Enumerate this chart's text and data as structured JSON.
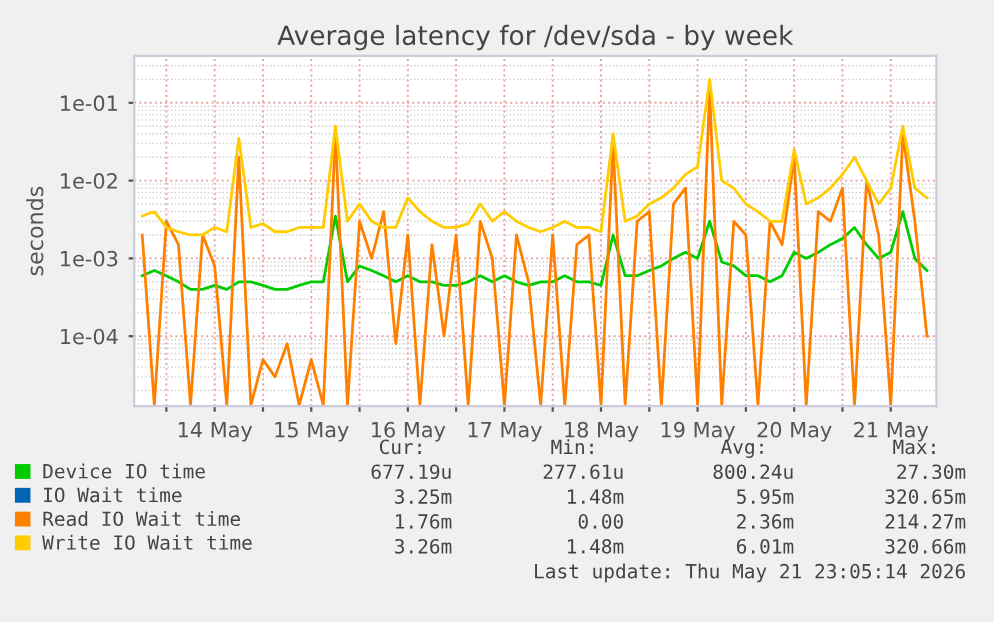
{
  "chart_data": {
    "type": "line",
    "title": "Average latency for /dev/sda - by week",
    "ylabel": "seconds",
    "log": "y",
    "grid": true,
    "legend": "bottom",
    "marker": "none",
    "line_style": "solid",
    "ylim": [
      1.26e-05,
      0.4
    ],
    "yticks": [
      {
        "value": 0.0001,
        "label": "1e-04"
      },
      {
        "value": 0.001,
        "label": "1e-03"
      },
      {
        "value": 0.01,
        "label": "1e-02"
      },
      {
        "value": 0.1,
        "label": "1e-01"
      }
    ],
    "xlim": [
      "2026-05-13T16:00",
      "2026-05-21T23:20"
    ],
    "xticks": [
      {
        "value": "2026-05-14",
        "label": null
      },
      {
        "value": "2026-05-14T12:00",
        "label": "14 May"
      },
      {
        "value": "2026-05-15",
        "label": null
      },
      {
        "value": "2026-05-15T12:00",
        "label": "15 May"
      },
      {
        "value": "2026-05-16",
        "label": null
      },
      {
        "value": "2026-05-16T12:00",
        "label": "16 May"
      },
      {
        "value": "2026-05-17",
        "label": null
      },
      {
        "value": "2026-05-17T12:00",
        "label": "17 May"
      },
      {
        "value": "2026-05-18",
        "label": null
      },
      {
        "value": "2026-05-18T12:00",
        "label": "18 May"
      },
      {
        "value": "2026-05-19",
        "label": null
      },
      {
        "value": "2026-05-19T12:00",
        "label": "19 May"
      },
      {
        "value": "2026-05-20",
        "label": null
      },
      {
        "value": "2026-05-20T12:00",
        "label": "20 May"
      },
      {
        "value": "2026-05-21",
        "label": null
      },
      {
        "value": "2026-05-21T12:00",
        "label": "21 May"
      }
    ],
    "x": [
      "2026-05-13T18:00",
      "2026-05-13T21:00",
      "2026-05-14T00:00",
      "2026-05-14T03:00",
      "2026-05-14T06:00",
      "2026-05-14T09:00",
      "2026-05-14T12:00",
      "2026-05-14T15:00",
      "2026-05-14T18:00",
      "2026-05-14T21:00",
      "2026-05-15T00:00",
      "2026-05-15T03:00",
      "2026-05-15T06:00",
      "2026-05-15T09:00",
      "2026-05-15T12:00",
      "2026-05-15T15:00",
      "2026-05-15T18:00",
      "2026-05-15T21:00",
      "2026-05-16T00:00",
      "2026-05-16T03:00",
      "2026-05-16T06:00",
      "2026-05-16T09:00",
      "2026-05-16T12:00",
      "2026-05-16T15:00",
      "2026-05-16T18:00",
      "2026-05-16T21:00",
      "2026-05-17T00:00",
      "2026-05-17T03:00",
      "2026-05-17T06:00",
      "2026-05-17T09:00",
      "2026-05-17T12:00",
      "2026-05-17T15:00",
      "2026-05-17T18:00",
      "2026-05-17T21:00",
      "2026-05-18T00:00",
      "2026-05-18T03:00",
      "2026-05-18T06:00",
      "2026-05-18T09:00",
      "2026-05-18T12:00",
      "2026-05-18T15:00",
      "2026-05-18T18:00",
      "2026-05-18T21:00",
      "2026-05-19T00:00",
      "2026-05-19T03:00",
      "2026-05-19T06:00",
      "2026-05-19T09:00",
      "2026-05-19T12:00",
      "2026-05-19T15:00",
      "2026-05-19T18:00",
      "2026-05-19T21:00",
      "2026-05-20T00:00",
      "2026-05-20T03:00",
      "2026-05-20T06:00",
      "2026-05-20T09:00",
      "2026-05-20T12:00",
      "2026-05-20T15:00",
      "2026-05-20T18:00",
      "2026-05-20T21:00",
      "2026-05-21T00:00",
      "2026-05-21T03:00",
      "2026-05-21T06:00",
      "2026-05-21T09:00",
      "2026-05-21T12:00",
      "2026-05-21T15:00",
      "2026-05-21T18:00",
      "2026-05-21T21:00"
    ],
    "series": [
      {
        "name": "Device IO time",
        "color": "#00cc00",
        "values": [
          0.0006,
          0.0007,
          0.0006,
          0.0005,
          0.0004,
          0.0004,
          0.00045,
          0.0004,
          0.0005,
          0.0005,
          0.00045,
          0.0004,
          0.0004,
          0.00045,
          0.0005,
          0.0005,
          0.0035,
          0.0005,
          0.0008,
          0.0007,
          0.0006,
          0.0005,
          0.0006,
          0.0005,
          0.0005,
          0.00045,
          0.00045,
          0.0005,
          0.0006,
          0.0005,
          0.0006,
          0.0005,
          0.00045,
          0.0005,
          0.0005,
          0.0006,
          0.0005,
          0.0005,
          0.00045,
          0.002,
          0.0006,
          0.0006,
          0.0007,
          0.0008,
          0.001,
          0.0012,
          0.001,
          0.003,
          0.0009,
          0.0008,
          0.0006,
          0.0006,
          0.0005,
          0.0006,
          0.0012,
          0.001,
          0.0012,
          0.0015,
          0.0018,
          0.0025,
          0.0015,
          0.001,
          0.0012,
          0.004,
          0.001,
          0.0007
        ]
      },
      {
        "name": "IO Wait time",
        "color": "#0066b3",
        "values": [
          null,
          null,
          null,
          null,
          null,
          null,
          null,
          null,
          null,
          null,
          null,
          null,
          null,
          null,
          null,
          null,
          null,
          null,
          null,
          null,
          null,
          null,
          null,
          null,
          null,
          null,
          null,
          null,
          null,
          null,
          null,
          null,
          null,
          null,
          null,
          null,
          null,
          null,
          null,
          null,
          null,
          null,
          null,
          null,
          null,
          null,
          null,
          null,
          null,
          null,
          null,
          null,
          null,
          null,
          null,
          null,
          null,
          null,
          null,
          null,
          null,
          null,
          null,
          null,
          null,
          null
        ]
      },
      {
        "name": "Read IO Wait time",
        "color": "#ff8000",
        "values": [
          0.002,
          1.3e-05,
          0.003,
          0.0015,
          1.3e-05,
          0.002,
          0.0008,
          1.3e-05,
          0.02,
          1.3e-05,
          5e-05,
          3e-05,
          8e-05,
          1.3e-05,
          5e-05,
          1.3e-05,
          0.04,
          1.3e-05,
          0.003,
          0.001,
          0.004,
          8e-05,
          0.002,
          1.3e-05,
          0.0015,
          0.0001,
          0.002,
          1.3e-05,
          0.003,
          0.001,
          1.3e-05,
          0.002,
          0.0005,
          1.3e-05,
          0.002,
          1.3e-05,
          0.0015,
          0.002,
          1.3e-05,
          0.03,
          1.3e-05,
          0.003,
          0.004,
          1.3e-05,
          0.005,
          0.008,
          1.3e-05,
          0.15,
          1.3e-05,
          0.003,
          0.002,
          1.3e-05,
          0.003,
          0.0015,
          0.02,
          1.3e-05,
          0.004,
          0.003,
          0.008,
          1.3e-05,
          0.01,
          0.002,
          1.3e-05,
          0.04,
          0.003,
          0.0001
        ]
      },
      {
        "name": "Write IO Wait time",
        "color": "#ffcc00",
        "values": [
          0.0035,
          0.004,
          0.0025,
          0.0022,
          0.002,
          0.002,
          0.0025,
          0.0022,
          0.035,
          0.0025,
          0.0028,
          0.0022,
          0.0022,
          0.0025,
          0.0025,
          0.0025,
          0.05,
          0.003,
          0.005,
          0.003,
          0.0025,
          0.0025,
          0.006,
          0.004,
          0.003,
          0.0025,
          0.0025,
          0.0028,
          0.005,
          0.003,
          0.004,
          0.003,
          0.0025,
          0.0022,
          0.0025,
          0.003,
          0.0025,
          0.0025,
          0.0022,
          0.04,
          0.003,
          0.0035,
          0.005,
          0.006,
          0.008,
          0.012,
          0.015,
          0.2,
          0.01,
          0.008,
          0.005,
          0.004,
          0.003,
          0.003,
          0.025,
          0.005,
          0.006,
          0.008,
          0.012,
          0.02,
          0.01,
          0.005,
          0.008,
          0.05,
          0.008,
          0.006
        ]
      }
    ],
    "annotations": [
      "Cur:",
      "Min:",
      "Avg:",
      "Max:",
      "677.19u",
      "277.61u",
      "800.24u",
      "27.30m",
      "3.25m",
      "1.48m",
      "5.95m",
      "320.65m",
      "1.76m",
      "0.00",
      "2.36m",
      "214.27m",
      "3.26m",
      "1.48m",
      "6.01m",
      "320.66m",
      "Last update: Thu May 21 23:05:14 2026"
    ]
  }
}
